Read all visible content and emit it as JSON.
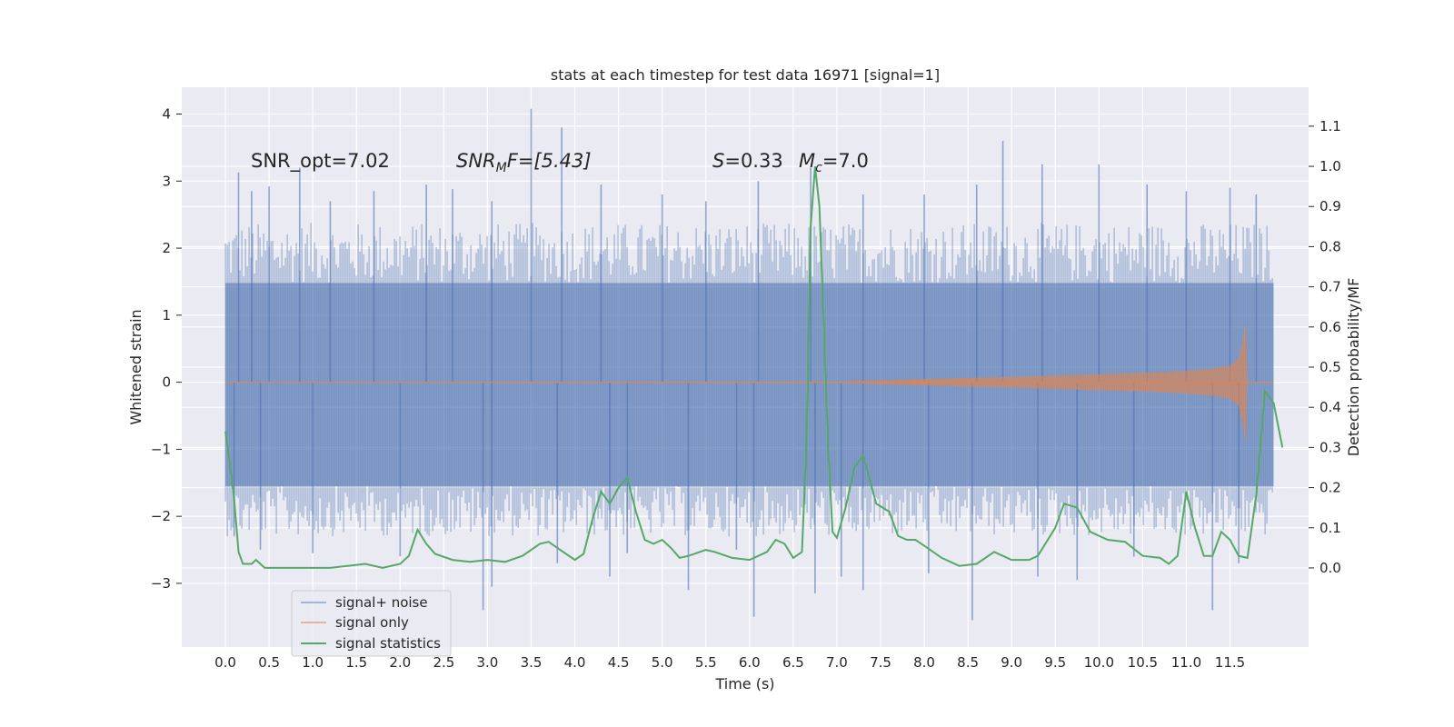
{
  "chart_data": {
    "type": "line",
    "title": "stats at each timestep for test data 16971 [signal=1]",
    "xlabel": "Time (s)",
    "ylabel_left": "Whitened strain",
    "ylabel_right": "Detection probability/MF",
    "xlim": [
      -0.5,
      12.4
    ],
    "ylim_left": [
      -3.95,
      4.4
    ],
    "ylim_right": [
      -0.197,
      1.197
    ],
    "x_ticks": [
      "0.0",
      "0.5",
      "1.0",
      "1.5",
      "2.0",
      "2.5",
      "3.0",
      "3.5",
      "4.0",
      "4.5",
      "5.0",
      "5.5",
      "6.0",
      "6.5",
      "7.0",
      "7.5",
      "8.0",
      "8.5",
      "9.0",
      "9.5",
      "10.0",
      "10.5",
      "11.0",
      "11.5"
    ],
    "y_ticks_left": [
      "4",
      "3",
      "2",
      "1",
      "0",
      "−1",
      "−2",
      "−3"
    ],
    "y_ticks_right": [
      "1.1",
      "1.0",
      "0.9",
      "0.8",
      "0.7",
      "0.6",
      "0.5",
      "0.4",
      "0.3",
      "0.2",
      "0.1",
      "0.0"
    ],
    "grid": true,
    "legend_position": "lower-left",
    "annotations": {
      "snr_opt": "SNR_opt=7.02",
      "snr_mf_base": "SNR",
      "snr_mf_sub": "M",
      "snr_mf_rest": "F=[5.43]",
      "s_label": "S",
      "s_value": "=0.33",
      "mc_base": "M",
      "mc_sub": "c",
      "mc_value": "=7.0"
    },
    "series": [
      {
        "name": "signal+ noise",
        "color": "#4c72b0",
        "kind": "noise",
        "x_range": [
          0.0,
          12.0
        ],
        "band": [
          -1.55,
          1.48
        ],
        "spikes_high": [
          [
            0.15,
            3.13
          ],
          [
            0.3,
            2.85
          ],
          [
            0.5,
            2.92
          ],
          [
            0.85,
            3.2
          ],
          [
            1.2,
            2.7
          ],
          [
            1.7,
            2.85
          ],
          [
            2.3,
            2.95
          ],
          [
            2.6,
            2.88
          ],
          [
            3.05,
            2.7
          ],
          [
            3.5,
            4.08
          ],
          [
            3.85,
            3.8
          ],
          [
            4.3,
            2.95
          ],
          [
            5.0,
            2.8
          ],
          [
            5.5,
            2.7
          ],
          [
            6.1,
            3.0
          ],
          [
            6.7,
            3.2
          ],
          [
            7.3,
            2.8
          ],
          [
            8.0,
            2.8
          ],
          [
            8.6,
            2.95
          ],
          [
            8.9,
            3.6
          ],
          [
            9.35,
            3.25
          ],
          [
            10.0,
            3.25
          ],
          [
            10.55,
            2.95
          ],
          [
            11.0,
            2.85
          ],
          [
            11.5,
            2.9
          ],
          [
            11.8,
            2.8
          ]
        ],
        "spikes_low": [
          [
            0.1,
            -2.3
          ],
          [
            0.4,
            -2.5
          ],
          [
            1.0,
            -2.55
          ],
          [
            2.0,
            -2.6
          ],
          [
            2.95,
            -3.4
          ],
          [
            3.05,
            -3.05
          ],
          [
            3.8,
            -2.7
          ],
          [
            4.4,
            -2.9
          ],
          [
            4.6,
            -2.55
          ],
          [
            5.3,
            -3.1
          ],
          [
            5.85,
            -2.5
          ],
          [
            6.05,
            -3.5
          ],
          [
            6.75,
            -3.15
          ],
          [
            7.05,
            -2.9
          ],
          [
            7.3,
            -3.1
          ],
          [
            8.05,
            -2.85
          ],
          [
            8.55,
            -3.55
          ],
          [
            9.3,
            -2.9
          ],
          [
            9.75,
            -2.95
          ],
          [
            10.4,
            -2.6
          ],
          [
            11.3,
            -3.4
          ],
          [
            11.6,
            -2.7
          ]
        ]
      },
      {
        "name": "signal only",
        "color": "#dd8452",
        "kind": "chirp",
        "x_range": [
          0.0,
          12.0
        ],
        "envelope": [
          [
            0.0,
            0.0
          ],
          [
            7.0,
            0.01
          ],
          [
            8.0,
            0.05
          ],
          [
            9.0,
            0.08
          ],
          [
            10.0,
            0.12
          ],
          [
            10.5,
            0.14
          ],
          [
            11.0,
            0.17
          ],
          [
            11.3,
            0.2
          ],
          [
            11.5,
            0.25
          ],
          [
            11.6,
            0.35
          ],
          [
            11.65,
            0.65
          ],
          [
            11.68,
            0.9
          ],
          [
            11.7,
            0.0
          ],
          [
            12.0,
            0.0
          ]
        ]
      },
      {
        "name": "signal statistics",
        "color": "#55a868",
        "kind": "line",
        "axis": "right",
        "points": [
          [
            0.0,
            0.34
          ],
          [
            0.05,
            0.26
          ],
          [
            0.1,
            0.17
          ],
          [
            0.15,
            0.04
          ],
          [
            0.2,
            0.01
          ],
          [
            0.3,
            0.01
          ],
          [
            0.35,
            0.02
          ],
          [
            0.45,
            0.0
          ],
          [
            0.6,
            0.0
          ],
          [
            0.8,
            0.0
          ],
          [
            1.0,
            0.0
          ],
          [
            1.2,
            0.0
          ],
          [
            1.4,
            0.005
          ],
          [
            1.6,
            0.01
          ],
          [
            1.8,
            0.0
          ],
          [
            2.0,
            0.01
          ],
          [
            2.1,
            0.03
          ],
          [
            2.2,
            0.095
          ],
          [
            2.3,
            0.06
          ],
          [
            2.4,
            0.035
          ],
          [
            2.6,
            0.02
          ],
          [
            2.8,
            0.015
          ],
          [
            3.0,
            0.02
          ],
          [
            3.2,
            0.015
          ],
          [
            3.4,
            0.03
          ],
          [
            3.6,
            0.06
          ],
          [
            3.7,
            0.065
          ],
          [
            3.8,
            0.05
          ],
          [
            4.0,
            0.02
          ],
          [
            4.1,
            0.035
          ],
          [
            4.2,
            0.12
          ],
          [
            4.3,
            0.19
          ],
          [
            4.4,
            0.16
          ],
          [
            4.5,
            0.2
          ],
          [
            4.6,
            0.225
          ],
          [
            4.7,
            0.14
          ],
          [
            4.8,
            0.07
          ],
          [
            4.9,
            0.06
          ],
          [
            5.0,
            0.07
          ],
          [
            5.1,
            0.05
          ],
          [
            5.2,
            0.025
          ],
          [
            5.3,
            0.03
          ],
          [
            5.5,
            0.045
          ],
          [
            5.6,
            0.04
          ],
          [
            5.8,
            0.025
          ],
          [
            6.0,
            0.02
          ],
          [
            6.2,
            0.04
          ],
          [
            6.3,
            0.07
          ],
          [
            6.4,
            0.06
          ],
          [
            6.5,
            0.025
          ],
          [
            6.6,
            0.04
          ],
          [
            6.65,
            0.3
          ],
          [
            6.7,
            0.85
          ],
          [
            6.75,
            1.0
          ],
          [
            6.8,
            0.9
          ],
          [
            6.85,
            0.6
          ],
          [
            6.9,
            0.3
          ],
          [
            6.95,
            0.09
          ],
          [
            7.0,
            0.075
          ],
          [
            7.1,
            0.15
          ],
          [
            7.2,
            0.25
          ],
          [
            7.3,
            0.28
          ],
          [
            7.45,
            0.16
          ],
          [
            7.6,
            0.14
          ],
          [
            7.7,
            0.08
          ],
          [
            7.8,
            0.07
          ],
          [
            7.9,
            0.07
          ],
          [
            8.0,
            0.055
          ],
          [
            8.2,
            0.025
          ],
          [
            8.4,
            0.005
          ],
          [
            8.6,
            0.01
          ],
          [
            8.8,
            0.04
          ],
          [
            9.0,
            0.02
          ],
          [
            9.2,
            0.02
          ],
          [
            9.3,
            0.03
          ],
          [
            9.5,
            0.1
          ],
          [
            9.6,
            0.16
          ],
          [
            9.75,
            0.15
          ],
          [
            9.9,
            0.09
          ],
          [
            10.1,
            0.07
          ],
          [
            10.3,
            0.065
          ],
          [
            10.5,
            0.03
          ],
          [
            10.7,
            0.025
          ],
          [
            10.8,
            0.01
          ],
          [
            10.9,
            0.03
          ],
          [
            11.0,
            0.19
          ],
          [
            11.1,
            0.1
          ],
          [
            11.2,
            0.03
          ],
          [
            11.3,
            0.03
          ],
          [
            11.4,
            0.09
          ],
          [
            11.5,
            0.07
          ],
          [
            11.6,
            0.03
          ],
          [
            11.7,
            0.025
          ],
          [
            11.8,
            0.18
          ],
          [
            11.9,
            0.44
          ],
          [
            12.0,
            0.41
          ],
          [
            12.1,
            0.3
          ]
        ]
      }
    ]
  }
}
